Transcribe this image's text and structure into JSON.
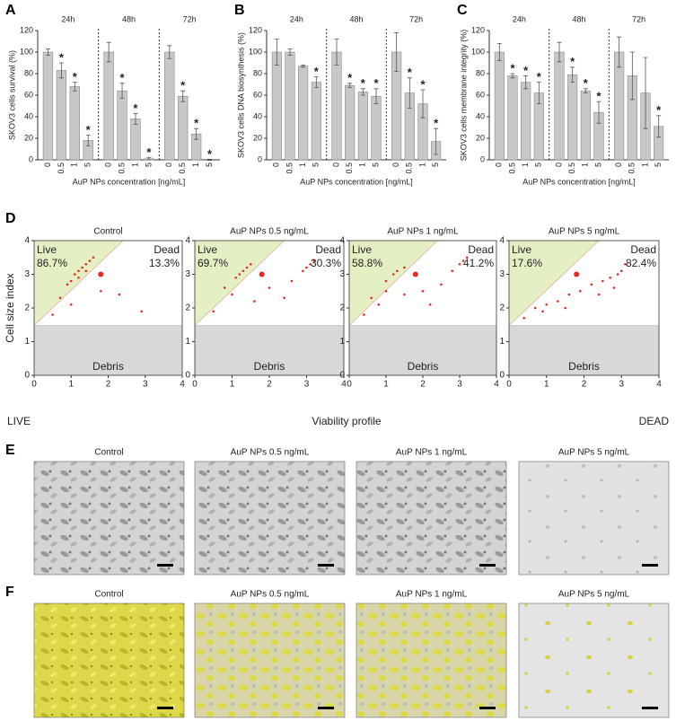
{
  "chart_data": [
    {
      "type": "grouped_bar",
      "panel": "A",
      "ylabel": "SKOV3 cells survival (%)",
      "xlabel": "AuP NPs concentration [ng/mL]",
      "ylim": [
        0,
        120
      ],
      "yticks": [
        0,
        20,
        40,
        60,
        80,
        100,
        120
      ],
      "color": "#c8c8c8",
      "groups": [
        {
          "name": "24h",
          "categories": [
            "0",
            "0.5",
            "1",
            "5"
          ],
          "values": [
            100,
            83,
            68,
            18
          ],
          "errors": [
            3,
            7,
            4,
            5
          ],
          "significance": [
            null,
            "*",
            "*",
            "*"
          ]
        },
        {
          "name": "48h",
          "categories": [
            "0",
            "0.5",
            "1",
            "5"
          ],
          "values": [
            100,
            64,
            38,
            1
          ],
          "errors": [
            9,
            7,
            5,
            1
          ],
          "significance": [
            null,
            "*",
            "*",
            "*"
          ]
        },
        {
          "name": "72h",
          "categories": [
            "0",
            "0.5",
            "1",
            "5"
          ],
          "values": [
            100,
            59,
            24,
            0
          ],
          "errors": [
            6,
            5,
            5,
            0.5
          ],
          "significance": [
            null,
            "*",
            "*",
            "*"
          ]
        }
      ]
    },
    {
      "type": "grouped_bar",
      "panel": "B",
      "ylabel": "SKOV3 cells DNA biosynthesis (%)",
      "xlabel": "AuP NPs concentration [ng/mL]",
      "ylim": [
        0,
        120
      ],
      "yticks": [
        0,
        20,
        40,
        60,
        80,
        100,
        120
      ],
      "color": "#c8c8c8",
      "groups": [
        {
          "name": "24h",
          "categories": [
            "0",
            "0.5",
            "1",
            "5"
          ],
          "values": [
            100,
            100,
            87,
            72
          ],
          "errors": [
            12,
            3,
            1,
            5
          ],
          "significance": [
            null,
            null,
            null,
            "*"
          ]
        },
        {
          "name": "48h",
          "categories": [
            "0",
            "0.5",
            "1",
            "5"
          ],
          "values": [
            100,
            69,
            63,
            59
          ],
          "errors": [
            12,
            2,
            3,
            7
          ],
          "significance": [
            null,
            "*",
            "*",
            "*"
          ]
        },
        {
          "name": "72h",
          "categories": [
            "0",
            "0.5",
            "1",
            "5"
          ],
          "values": [
            100,
            62,
            52,
            17
          ],
          "errors": [
            18,
            14,
            13,
            12
          ],
          "significance": [
            null,
            "*",
            "*",
            "*"
          ]
        }
      ]
    },
    {
      "type": "grouped_bar",
      "panel": "C",
      "ylabel": "SKOV3 cells membrane integrity (%)",
      "xlabel": "AuP NPs concentration [ng/mL]",
      "ylim": [
        0,
        120
      ],
      "yticks": [
        0,
        20,
        40,
        60,
        80,
        100,
        120
      ],
      "color": "#c8c8c8",
      "groups": [
        {
          "name": "24h",
          "categories": [
            "0",
            "0.5",
            "1",
            "5"
          ],
          "values": [
            100,
            78,
            72,
            62
          ],
          "errors": [
            8,
            2,
            6,
            10
          ],
          "significance": [
            null,
            "*",
            "*",
            "*"
          ]
        },
        {
          "name": "48h",
          "categories": [
            "0",
            "0.5",
            "1",
            "5"
          ],
          "values": [
            100,
            79,
            64,
            44
          ],
          "errors": [
            9,
            7,
            2,
            10
          ],
          "significance": [
            null,
            "*",
            "*",
            "*"
          ]
        },
        {
          "name": "72h",
          "categories": [
            "0",
            "0.5",
            "1",
            "5"
          ],
          "values": [
            100,
            78,
            62,
            31
          ],
          "errors": [
            14,
            22,
            33,
            10
          ],
          "significance": [
            null,
            null,
            null,
            "*"
          ]
        }
      ]
    },
    {
      "type": "scatter",
      "title": "Control",
      "ylabel": "Cell size index",
      "xlim": [
        0,
        4
      ],
      "ylim": [
        0,
        4
      ],
      "xticks": [
        0,
        1,
        2,
        3,
        4
      ],
      "yticks": [
        0,
        1,
        2,
        3,
        4
      ],
      "color": "#e8281e",
      "categories": [
        "Live",
        "Dead"
      ],
      "values": [
        86.7,
        13.3
      ],
      "value_labels": [
        "86.7%",
        "13.3%"
      ],
      "region": "Debris",
      "x": [
        1.0,
        1.1,
        1.2,
        1.3,
        1.4,
        1.5,
        1.6,
        0.9,
        1.2,
        1.4,
        0.7,
        1.8,
        2.3,
        2.9,
        0.5,
        1.0
      ],
      "y": [
        2.8,
        3.0,
        3.1,
        3.2,
        3.3,
        3.4,
        3.5,
        2.7,
        2.9,
        3.1,
        2.3,
        2.5,
        2.4,
        1.9,
        1.8,
        2.1
      ],
      "mean": [
        1.8,
        3.0
      ]
    },
    {
      "type": "scatter",
      "title": "AuP NPs 0.5 ng/mL",
      "xlim": [
        0,
        4
      ],
      "ylim": [
        0,
        4
      ],
      "xticks": [
        0,
        1,
        2,
        3,
        4
      ],
      "yticks": [
        0,
        1,
        2,
        3,
        4
      ],
      "color": "#e8281e",
      "categories": [
        "Live",
        "Dead"
      ],
      "values": [
        69.7,
        30.3
      ],
      "value_labels": [
        "69.7%",
        "30.3%"
      ],
      "region": "Debris",
      "x": [
        1.1,
        1.2,
        1.3,
        1.4,
        1.5,
        0.8,
        1.0,
        0.5,
        1.6,
        2.0,
        2.6,
        2.9,
        3.0,
        3.1,
        3.2,
        2.4
      ],
      "y": [
        2.9,
        3.0,
        3.1,
        3.2,
        3.3,
        2.6,
        2.4,
        1.9,
        2.2,
        2.6,
        2.8,
        3.1,
        3.2,
        3.3,
        3.4,
        2.3
      ],
      "mean": [
        1.8,
        3.0
      ]
    },
    {
      "type": "scatter",
      "title": "AuP NPs 1 ng/mL",
      "xlim": [
        0,
        4
      ],
      "ylim": [
        0,
        4
      ],
      "xticks": [
        0,
        1,
        2,
        3,
        4
      ],
      "yticks": [
        0,
        1,
        2,
        3,
        4
      ],
      "color": "#e8281e",
      "categories": [
        "Live",
        "Dead"
      ],
      "values": [
        58.8,
        41.2
      ],
      "value_labels": [
        "58.8%",
        "41.2%"
      ],
      "region": "Debris",
      "x": [
        1.0,
        1.2,
        1.3,
        1.5,
        0.6,
        0.8,
        0.4,
        1.5,
        2.0,
        2.5,
        2.8,
        3.0,
        3.1,
        3.2,
        2.2,
        1.0
      ],
      "y": [
        2.8,
        3.0,
        3.1,
        3.2,
        2.3,
        2.1,
        1.8,
        2.4,
        2.5,
        2.7,
        3.1,
        3.3,
        3.4,
        3.5,
        2.1,
        2.5
      ],
      "mean": [
        1.8,
        3.0
      ]
    },
    {
      "type": "scatter",
      "title": "AuP NPs 5 ng/mL",
      "xlim": [
        0,
        4
      ],
      "ylim": [
        0,
        4
      ],
      "xticks": [
        0,
        1,
        2,
        3,
        4
      ],
      "yticks": [
        0,
        1,
        2,
        3,
        4
      ],
      "color": "#e8281e",
      "categories": [
        "Live",
        "Dead"
      ],
      "values": [
        17.6,
        82.4
      ],
      "value_labels": [
        "17.6%",
        "82.4%"
      ],
      "region": "Debris",
      "x": [
        0.4,
        0.7,
        1.0,
        1.3,
        1.6,
        1.9,
        2.2,
        2.5,
        2.7,
        2.9,
        3.0,
        3.1,
        0.9,
        1.5,
        2.4,
        2.8
      ],
      "y": [
        1.7,
        2.0,
        2.1,
        2.2,
        2.4,
        2.5,
        2.7,
        2.8,
        2.9,
        3.0,
        3.1,
        3.3,
        1.9,
        2.0,
        2.4,
        2.6
      ],
      "mean": [
        1.8,
        3.0
      ]
    }
  ],
  "panel_D": {
    "letter": "D",
    "xlabel": "Viability profile",
    "left_label": "LIVE",
    "right_label": "DEAD"
  },
  "panel_E": {
    "letter": "E",
    "titles": [
      "Control",
      "AuP NPs 0.5 ng/mL",
      "AuP NPs 1 ng/mL",
      "AuP NPs 5 ng/mL"
    ]
  },
  "panel_F": {
    "letter": "F",
    "titles": [
      "Control",
      "AuP NPs 0.5 ng/mL",
      "AuP NPs 1 ng/mL",
      "AuP NPs 5 ng/mL"
    ]
  }
}
